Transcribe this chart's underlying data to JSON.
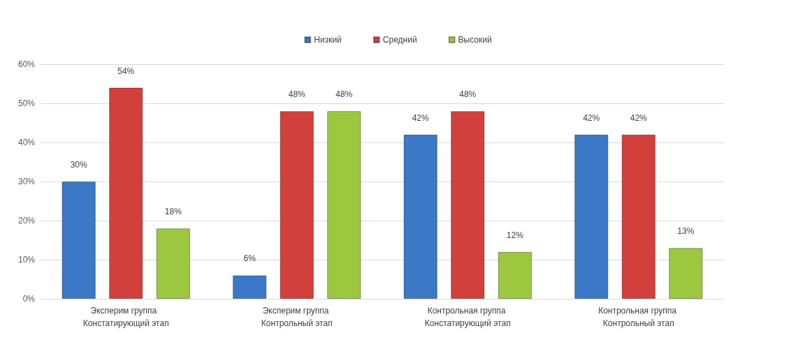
{
  "chart_data": {
    "type": "bar",
    "categories": [
      "Эксперим группа  Констатирующий этап",
      "Эксперим группа Контрольный этап",
      "Контрольная группа Констатирующий этап",
      "Контрольная группа Контрольный этап"
    ],
    "series": [
      {
        "name": "Низкий",
        "color": "#3b78c6",
        "values": [
          30,
          6,
          42,
          42
        ],
        "value_labels": [
          "30%",
          "6%",
          "42%",
          "42%"
        ]
      },
      {
        "name": "Средний",
        "color": "#d2403c",
        "values": [
          54,
          48,
          48,
          42
        ],
        "value_labels": [
          "54%",
          "48%",
          "48%",
          "42%"
        ]
      },
      {
        "name": "Высокий",
        "color": "#9bc83f",
        "values": [
          18,
          48,
          12,
          13
        ],
        "value_labels": [
          "18%",
          "48%",
          "12%",
          "13%"
        ]
      }
    ],
    "ylim": [
      0,
      60
    ],
    "yticks": [
      {
        "value": 0,
        "label": "0%"
      },
      {
        "value": 10,
        "label": "10%"
      },
      {
        "value": 20,
        "label": "20%"
      },
      {
        "value": 30,
        "label": "30%"
      },
      {
        "value": 40,
        "label": "40%"
      },
      {
        "value": 50,
        "label": "50%"
      },
      {
        "value": 60,
        "label": "60%"
      }
    ],
    "grid": "y",
    "legend": "top"
  }
}
